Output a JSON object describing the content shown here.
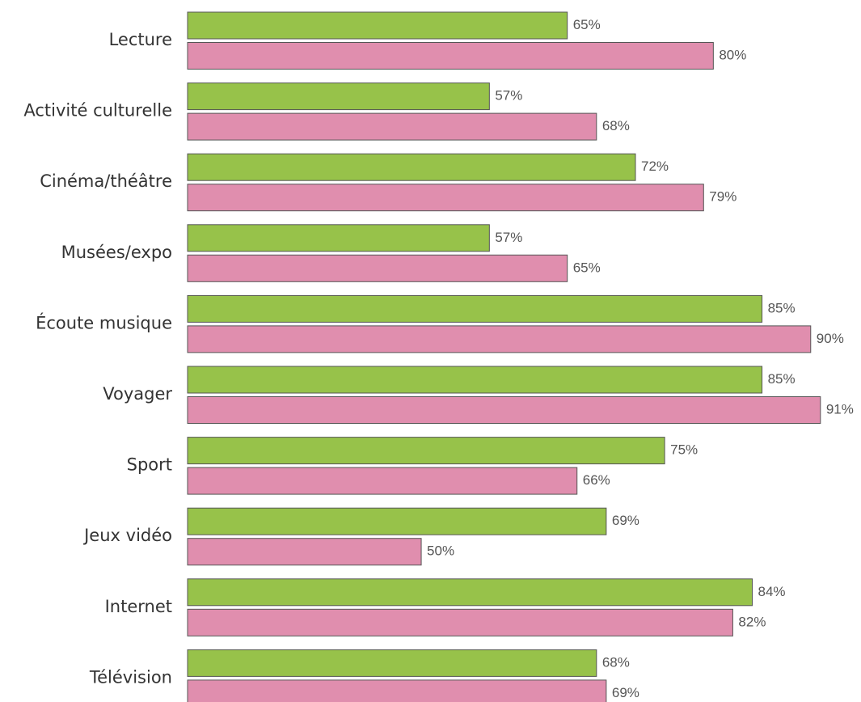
{
  "chart_data": {
    "type": "barh",
    "categories": [
      "Lecture",
      "Activité culturelle",
      "Cinéma/théâtre",
      "Musées/expo",
      "Écoute musique",
      "Voyager",
      "Sport",
      "Jeux vidéo",
      "Internet",
      "Télévision"
    ],
    "series": [
      {
        "color": "#97c24a",
        "values": [
          65,
          57,
          72,
          57,
          85,
          85,
          75,
          69,
          84,
          68
        ],
        "value_labels": [
          "65%",
          "57%",
          "72%",
          "57%",
          "85%",
          "85%",
          "75%",
          "69%",
          "84%",
          "68%"
        ]
      },
      {
        "color": "#e08eae",
        "values": [
          80,
          68,
          79,
          65,
          90,
          91,
          66,
          50,
          82,
          69
        ],
        "value_labels": [
          "80%",
          "68%",
          "79%",
          "65%",
          "90%",
          "91%",
          "66%",
          "50%",
          "82%",
          "69%"
        ]
      }
    ],
    "xlim": [
      26,
      95
    ],
    "grid": false
  }
}
